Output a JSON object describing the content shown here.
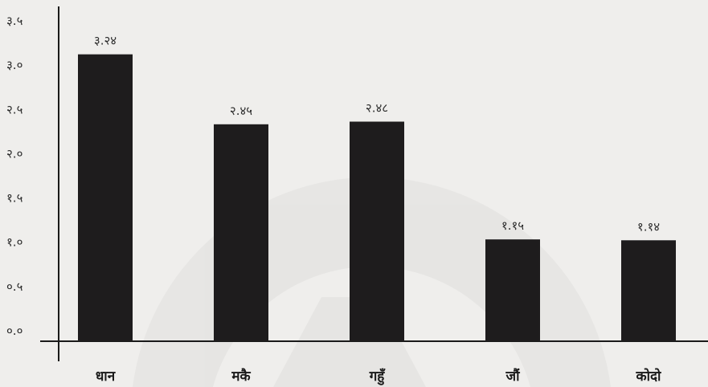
{
  "chart_data": {
    "type": "bar",
    "categories": [
      "धान",
      "मकै",
      "गहुँ",
      "जौं",
      "कोदो"
    ],
    "values": [
      3.24,
      2.45,
      2.48,
      1.15,
      1.14
    ],
    "value_labels": [
      "३.२४",
      "२.४५",
      "२.४८",
      "१.१५",
      "१.१४"
    ],
    "y_ticks": [
      0.0,
      0.5,
      1.0,
      1.5,
      2.0,
      2.5,
      3.0,
      3.5
    ],
    "y_tick_labels": [
      "०.०",
      "०.५",
      "१.०",
      "१.५",
      "२.०",
      "२.५",
      "३.०",
      "३.५"
    ],
    "ylim": [
      0,
      3.5
    ],
    "title": "",
    "xlabel": "",
    "ylabel": "",
    "grid": false,
    "bar_color": "#1e1c1d",
    "background_color": "#efeeec"
  }
}
